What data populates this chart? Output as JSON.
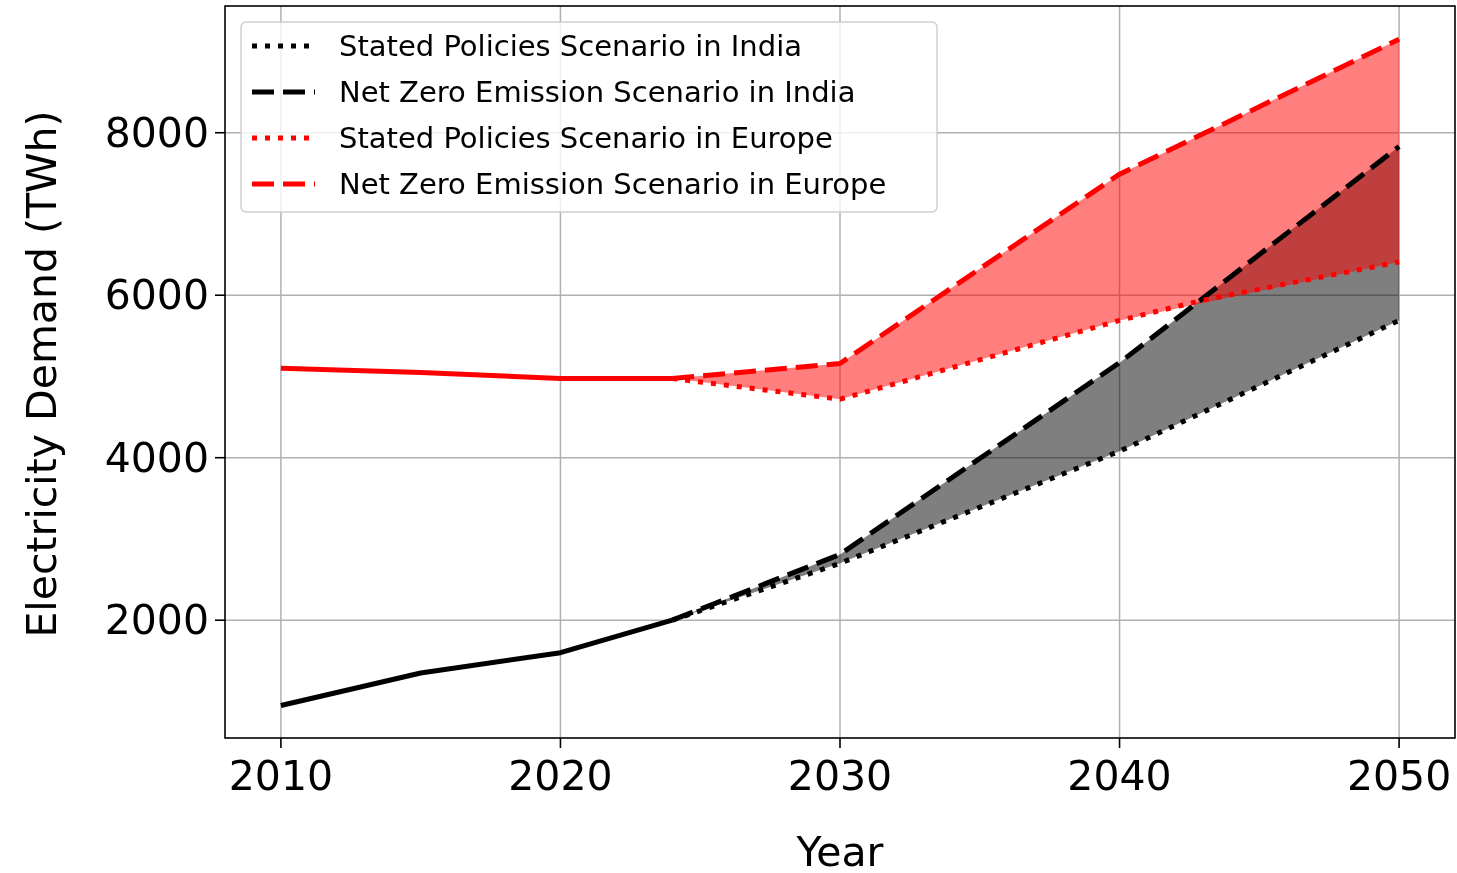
{
  "chart_data": {
    "type": "line",
    "xlabel": "Year",
    "ylabel": "Electricity Demand (TWh)",
    "xlim": [
      2008,
      2052
    ],
    "ylim": [
      550,
      9560
    ],
    "xticks": [
      2010,
      2020,
      2030,
      2040,
      2050
    ],
    "yticks": [
      2000,
      4000,
      6000,
      8000
    ],
    "grid": true,
    "legend": "top left",
    "series": [
      {
        "color": "#ff0000",
        "line_style": "solid",
        "x": [
          2010,
          2015,
          2020,
          2024
        ],
        "values": [
          5100,
          5050,
          4975,
          4975
        ]
      },
      {
        "color": "#000000",
        "line_style": "solid",
        "x": [
          2010,
          2015,
          2020,
          2024
        ],
        "values": [
          950,
          1350,
          1600,
          2000
        ]
      },
      {
        "name": "Stated Policies Scenario in India",
        "color": "#000000",
        "line_style": "dotted",
        "x": [
          2024,
          2030,
          2040,
          2050
        ],
        "values": [
          2000,
          2700,
          4080,
          5690
        ]
      },
      {
        "name": "Net Zero Emission Scenario in India",
        "color": "#000000",
        "line_style": "dashed",
        "x": [
          2024,
          2030,
          2040,
          2050
        ],
        "values": [
          2000,
          2810,
          5170,
          7830
        ],
        "lower": [
          2000,
          2700,
          4080,
          5690
        ],
        "upper": [
          2000,
          2810,
          5170,
          7830
        ]
      },
      {
        "name": "Stated Policies Scenario in Europe",
        "color": "#ff0000",
        "line_style": "dotted",
        "x": [
          2024,
          2030,
          2040,
          2043,
          2050
        ],
        "values": [
          4975,
          4720,
          5690,
          5940,
          6410
        ]
      },
      {
        "name": "Net Zero Emission Scenario in Europe",
        "color": "#ff0000",
        "line_style": "dashed",
        "x": [
          2024,
          2030,
          2040,
          2050
        ],
        "values": [
          4975,
          5160,
          7490,
          9150
        ],
        "lower": [
          4975,
          4720,
          5690,
          6410
        ],
        "upper": [
          4975,
          5160,
          7490,
          9150
        ]
      }
    ]
  }
}
